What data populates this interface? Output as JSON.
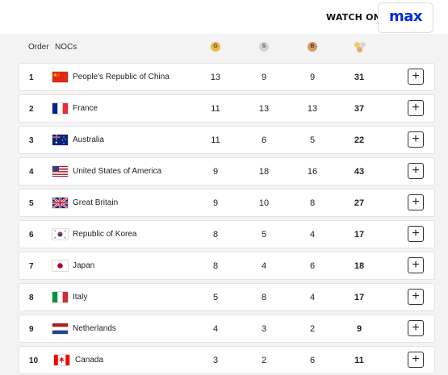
{
  "watch": {
    "label": "WATCH ON",
    "brand": "max"
  },
  "header": {
    "order": "Order",
    "nocs": "NOCs",
    "gold_badge": "G",
    "silver_badge": "S",
    "bronze_badge": "B"
  },
  "rows": [
    {
      "order": "1",
      "flag": "china-flag-icon",
      "country": "People's Republic of China",
      "gold": "13",
      "silver": "9",
      "bronze": "9",
      "total": "31"
    },
    {
      "order": "2",
      "flag": "france-flag-icon",
      "country": "France",
      "gold": "11",
      "silver": "13",
      "bronze": "13",
      "total": "37"
    },
    {
      "order": "3",
      "flag": "australia-flag-icon",
      "country": "Australia",
      "gold": "11",
      "silver": "6",
      "bronze": "5",
      "total": "22"
    },
    {
      "order": "4",
      "flag": "usa-flag-icon",
      "country": "United States of America",
      "gold": "9",
      "silver": "18",
      "bronze": "16",
      "total": "43"
    },
    {
      "order": "5",
      "flag": "uk-flag-icon",
      "country": "Great Britain",
      "gold": "9",
      "silver": "10",
      "bronze": "8",
      "total": "27"
    },
    {
      "order": "6",
      "flag": "korea-flag-icon",
      "country": "Republic of Korea",
      "gold": "8",
      "silver": "5",
      "bronze": "4",
      "total": "17"
    },
    {
      "order": "7",
      "flag": "japan-flag-icon",
      "country": "Japan",
      "gold": "8",
      "silver": "4",
      "bronze": "6",
      "total": "18"
    },
    {
      "order": "8",
      "flag": "italy-flag-icon",
      "country": "Italy",
      "gold": "5",
      "silver": "8",
      "bronze": "4",
      "total": "17"
    },
    {
      "order": "9",
      "flag": "netherlands-flag-icon",
      "country": "Netherlands",
      "gold": "4",
      "silver": "3",
      "bronze": "2",
      "total": "9"
    },
    {
      "order": "10",
      "flag": "canada-flag-icon",
      "country": "Canada",
      "gold": "3",
      "silver": "2",
      "bronze": "6",
      "total": "11"
    }
  ],
  "expand_icon": "plus-icon",
  "colors": {
    "brand": "#002be7",
    "gold": "#e8b84b",
    "silver": "#d2d2d2",
    "bronze": "#d49a6a"
  }
}
